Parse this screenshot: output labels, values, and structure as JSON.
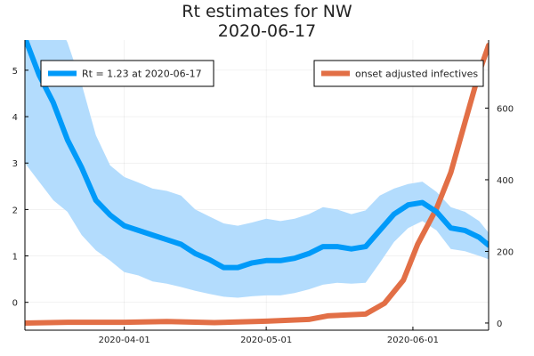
{
  "chart_data": {
    "type": "line",
    "title": [
      "Rt estimates for NW",
      "2020-06-17"
    ],
    "xlabel": "",
    "ylabel": "",
    "x_axis": {
      "type": "date",
      "ticks": [
        "2020-04-01",
        "2020-05-01",
        "2020-06-01"
      ],
      "range": [
        "2020-03-11",
        "2020-06-17"
      ]
    },
    "y_left": {
      "ticks": [
        0,
        1,
        2,
        3,
        4,
        5
      ],
      "range": [
        -0.6,
        5.65
      ]
    },
    "y_right": {
      "ticks": [
        0,
        200,
        400,
        600
      ],
      "range": [
        -20,
        790
      ]
    },
    "grid": true,
    "series": [
      {
        "name": "Rt = 1.23 at 2020-06-17",
        "axis": "left",
        "color": "#009af9",
        "band_color": "#b3dcfd",
        "points": [
          [
            "2020-03-11",
            5.7,
            3.0,
            6.5
          ],
          [
            "2020-03-14",
            4.9,
            2.6,
            6.5
          ],
          [
            "2020-03-17",
            4.3,
            2.2,
            6.2
          ],
          [
            "2020-03-20",
            3.5,
            1.95,
            5.6
          ],
          [
            "2020-03-23",
            2.9,
            1.45,
            4.7
          ],
          [
            "2020-03-26",
            2.2,
            1.12,
            3.6
          ],
          [
            "2020-03-29",
            1.88,
            0.9,
            2.95
          ],
          [
            "2020-04-01",
            1.65,
            0.65,
            2.7
          ],
          [
            "2020-04-04",
            1.55,
            0.58,
            2.58
          ],
          [
            "2020-04-07",
            1.45,
            0.45,
            2.45
          ],
          [
            "2020-04-10",
            1.35,
            0.4,
            2.4
          ],
          [
            "2020-04-13",
            1.25,
            0.33,
            2.3
          ],
          [
            "2020-04-16",
            1.05,
            0.25,
            2.0
          ],
          [
            "2020-04-19",
            0.92,
            0.18,
            1.85
          ],
          [
            "2020-04-22",
            0.75,
            0.12,
            1.7
          ],
          [
            "2020-04-25",
            0.75,
            0.1,
            1.65
          ],
          [
            "2020-04-28",
            0.85,
            0.13,
            1.72
          ],
          [
            "2020-05-01",
            0.9,
            0.15,
            1.8
          ],
          [
            "2020-05-04",
            0.9,
            0.15,
            1.75
          ],
          [
            "2020-05-07",
            0.95,
            0.2,
            1.8
          ],
          [
            "2020-05-10",
            1.05,
            0.28,
            1.9
          ],
          [
            "2020-05-13",
            1.2,
            0.38,
            2.05
          ],
          [
            "2020-05-16",
            1.2,
            0.42,
            2.0
          ],
          [
            "2020-05-19",
            1.15,
            0.4,
            1.9
          ],
          [
            "2020-05-22",
            1.2,
            0.42,
            1.98
          ],
          [
            "2020-05-25",
            1.55,
            0.85,
            2.3
          ],
          [
            "2020-05-28",
            1.9,
            1.3,
            2.45
          ],
          [
            "2020-05-31",
            2.1,
            1.6,
            2.55
          ],
          [
            "2020-06-03",
            2.15,
            1.75,
            2.6
          ],
          [
            "2020-06-06",
            1.95,
            1.55,
            2.38
          ],
          [
            "2020-06-09",
            1.6,
            1.15,
            2.05
          ],
          [
            "2020-06-12",
            1.55,
            1.1,
            1.95
          ],
          [
            "2020-06-15",
            1.4,
            1.0,
            1.75
          ],
          [
            "2020-06-17",
            1.23,
            0.93,
            1.5
          ]
        ]
      },
      {
        "name": "onset adjusted infectives",
        "axis": "right",
        "color": "#e26f46",
        "points": [
          [
            "2020-03-11",
            0
          ],
          [
            "2020-03-20",
            2
          ],
          [
            "2020-04-01",
            2
          ],
          [
            "2020-04-10",
            4
          ],
          [
            "2020-04-20",
            1
          ],
          [
            "2020-05-01",
            5
          ],
          [
            "2020-05-10",
            10
          ],
          [
            "2020-05-14",
            20
          ],
          [
            "2020-05-22",
            25
          ],
          [
            "2020-05-26",
            55
          ],
          [
            "2020-05-30",
            120
          ],
          [
            "2020-06-02",
            220
          ],
          [
            "2020-06-06",
            320
          ],
          [
            "2020-06-09",
            420
          ],
          [
            "2020-06-12",
            560
          ],
          [
            "2020-06-15",
            700
          ],
          [
            "2020-06-17",
            775
          ]
        ]
      }
    ],
    "legend": [
      {
        "label": "Rt = 1.23 at 2020-06-17",
        "placement": "top-left"
      },
      {
        "label": "onset adjusted infectives",
        "placement": "top-right"
      }
    ]
  }
}
